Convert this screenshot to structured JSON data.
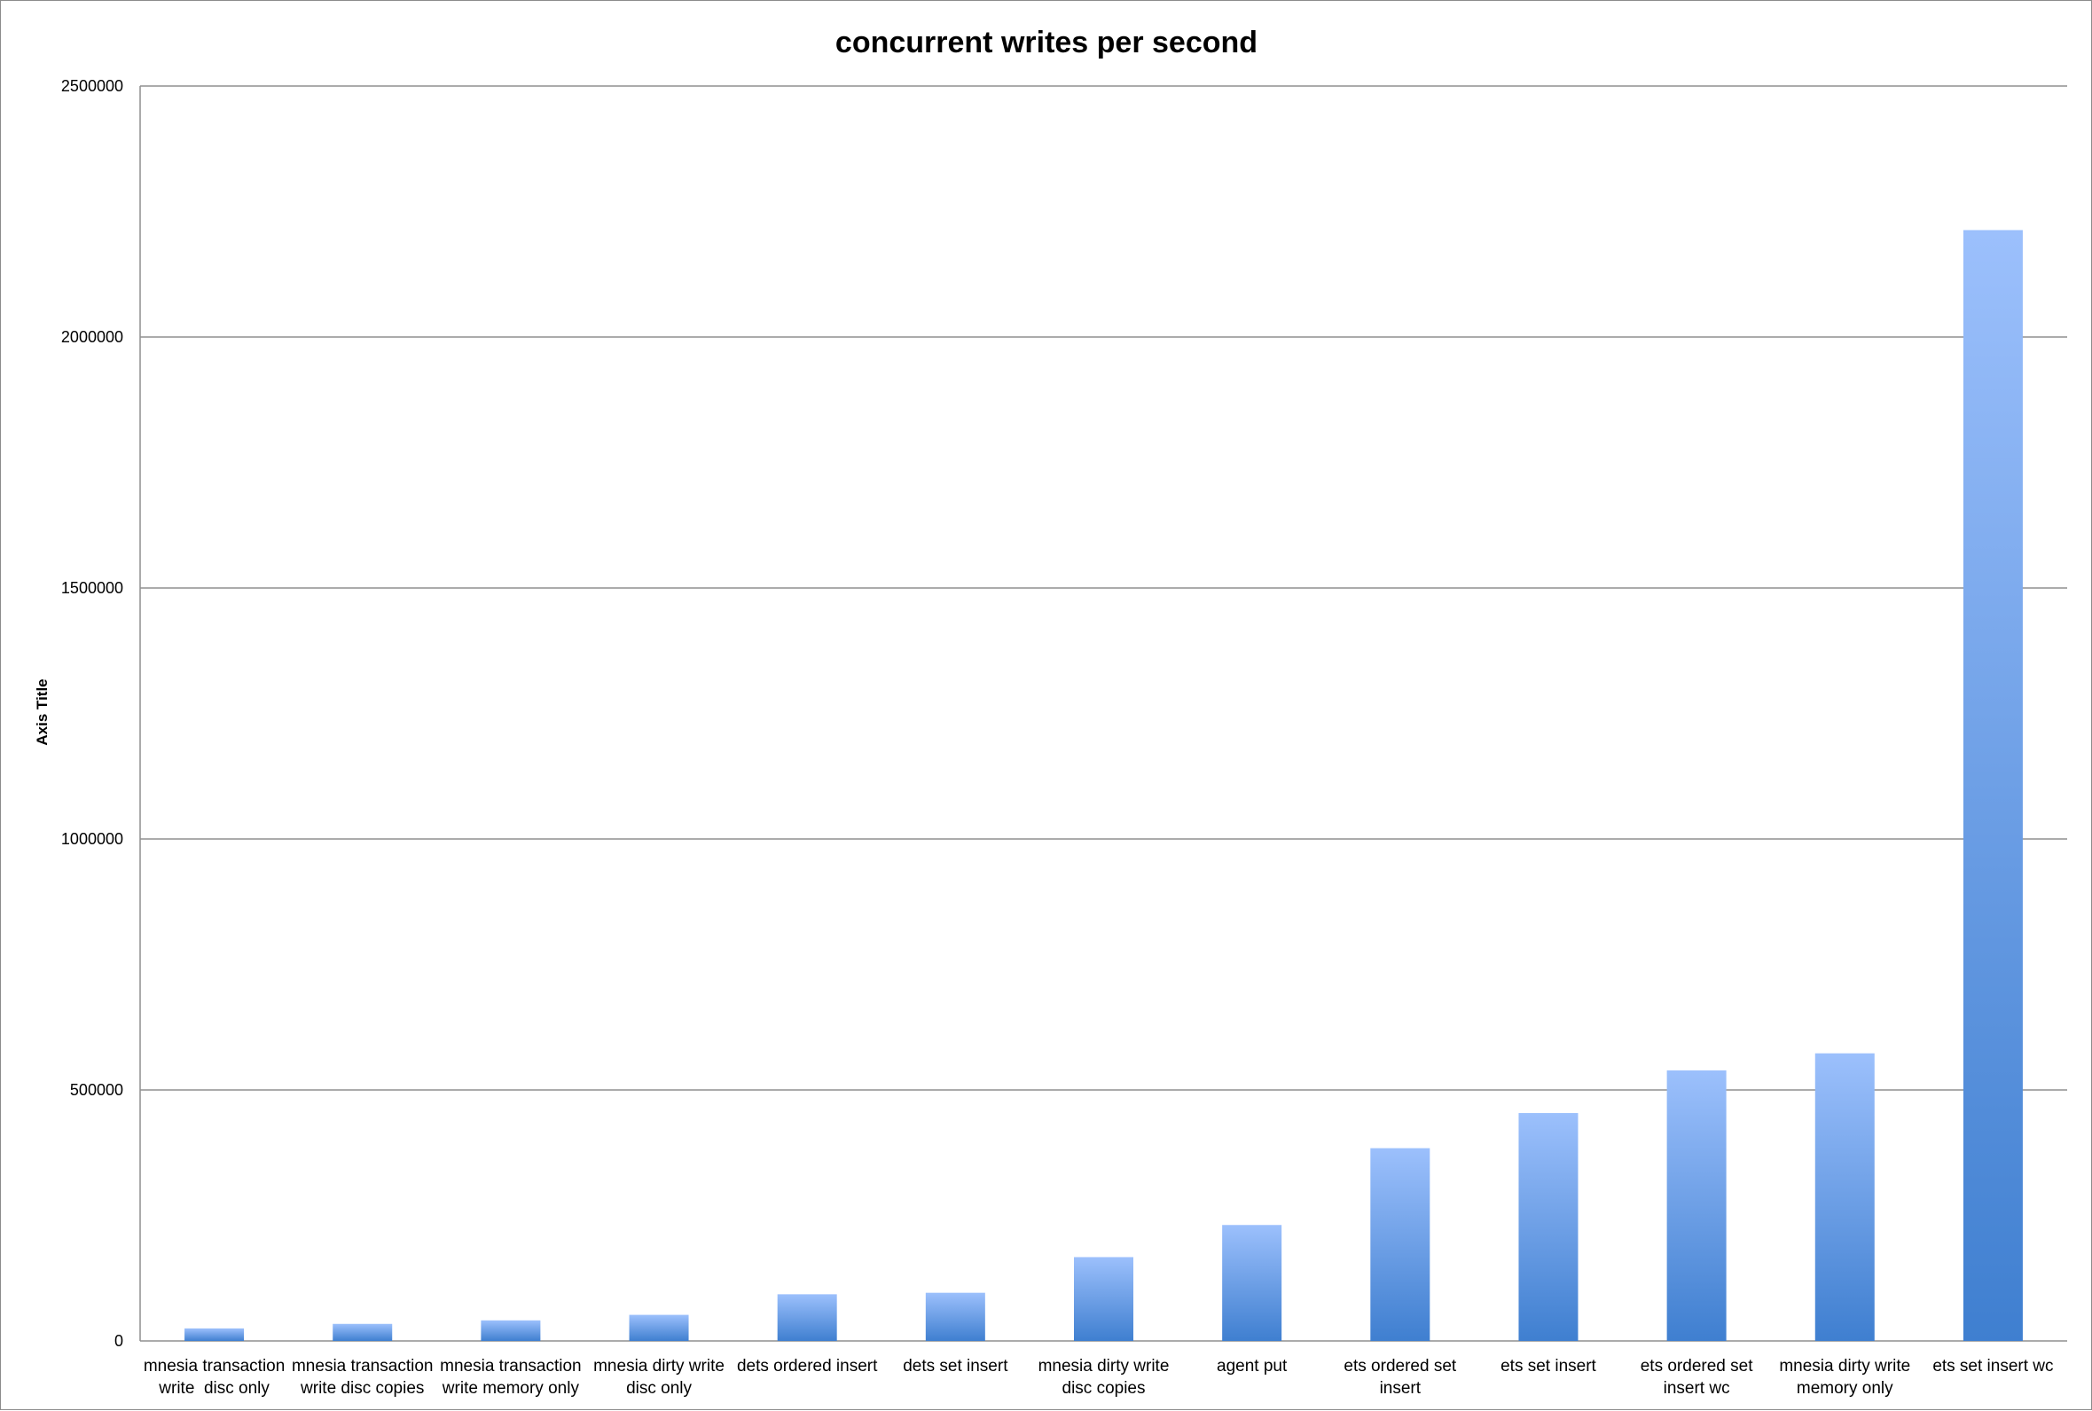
{
  "chart_data": {
    "type": "bar",
    "title": "concurrent writes per second",
    "ylabel": "Axis Title",
    "xlabel": "",
    "ylim": [
      0,
      2500000
    ],
    "yticks": [
      "0",
      "500000",
      "1000000",
      "1500000",
      "2000000",
      "2500000"
    ],
    "ytick_values": [
      0,
      500000,
      1000000,
      1500000,
      2000000,
      2500000
    ],
    "grid": true,
    "legend": "none",
    "categories": [
      [
        "mnesia transaction",
        "write  disc only"
      ],
      [
        "mnesia transaction",
        "write disc copies"
      ],
      [
        "mnesia transaction",
        "write memory only"
      ],
      [
        "mnesia dirty write",
        "disc only"
      ],
      [
        "dets ordered insert"
      ],
      [
        "dets set insert"
      ],
      [
        "mnesia dirty write",
        "disc copies"
      ],
      [
        "agent put"
      ],
      [
        "ets ordered set",
        "insert"
      ],
      [
        "ets set insert"
      ],
      [
        "ets ordered set",
        "insert wc"
      ],
      [
        "mnesia dirty write",
        "memory only"
      ],
      [
        "ets set insert wc"
      ]
    ],
    "values": [
      25000,
      34000,
      41000,
      52000,
      93000,
      96000,
      167000,
      231000,
      384000,
      454000,
      539000,
      573000,
      2213000
    ],
    "colors": {
      "bar_top": "#9cc0fc",
      "bar_bottom": "#3f7fd0",
      "grid": "#8f8f8f"
    }
  }
}
